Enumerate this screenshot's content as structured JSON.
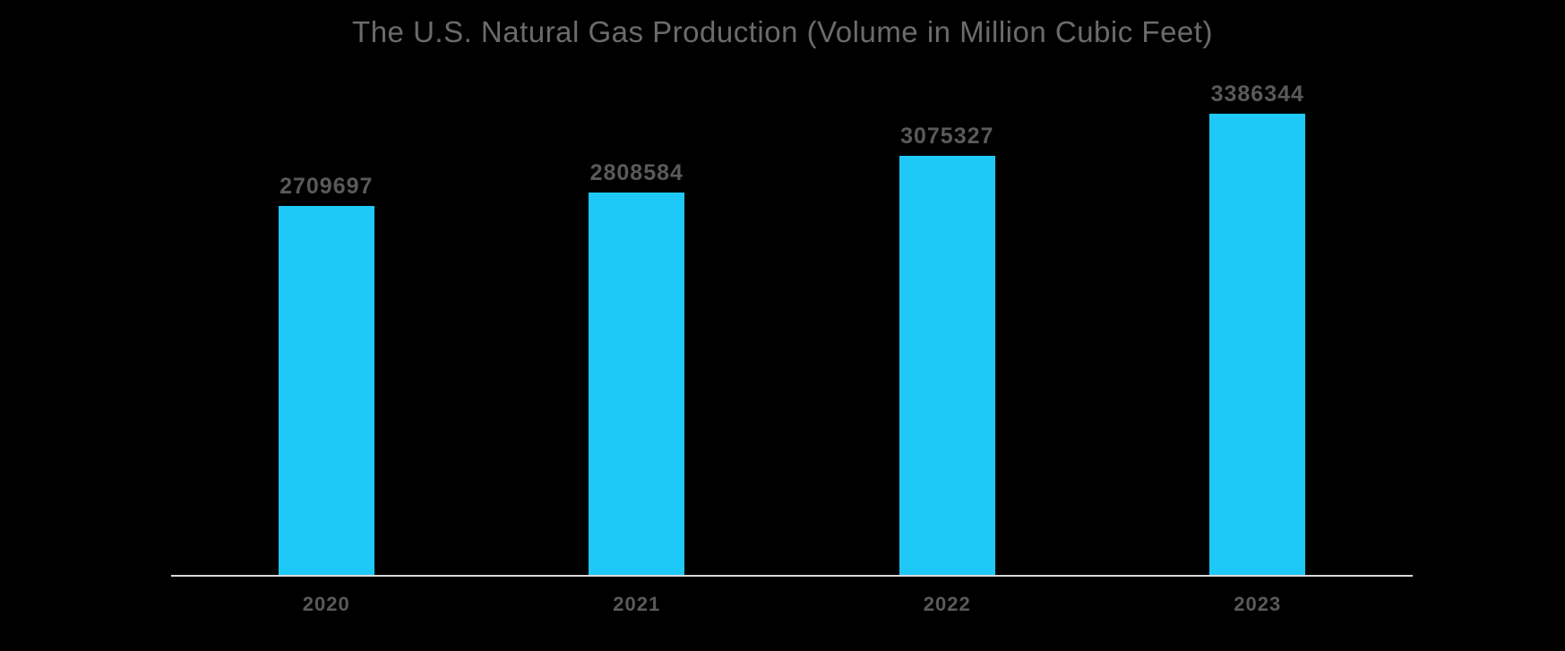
{
  "colors": {
    "background": "#000000",
    "bar": "#1EC8F7",
    "title_text": "#6B6B6B",
    "label_text": "#5A5A5A",
    "axis_line": "#D9D9D9"
  },
  "chart_data": {
    "type": "bar",
    "title": "The U.S. Natural Gas Production (Volume in Million Cubic Feet)",
    "categories": [
      "2020",
      "2021",
      "2022",
      "2023"
    ],
    "values": [
      2709697,
      2808584,
      3075327,
      3386344
    ],
    "value_labels": [
      "2709697",
      "2808584",
      "3075327",
      "3386344"
    ],
    "xlabel": "",
    "ylabel": "",
    "ylim": [
      0,
      3386344
    ],
    "grid": false,
    "legend": "none",
    "bar_color": "#1EC8F7",
    "background_color": "#000000",
    "value_labels_shown": true
  }
}
